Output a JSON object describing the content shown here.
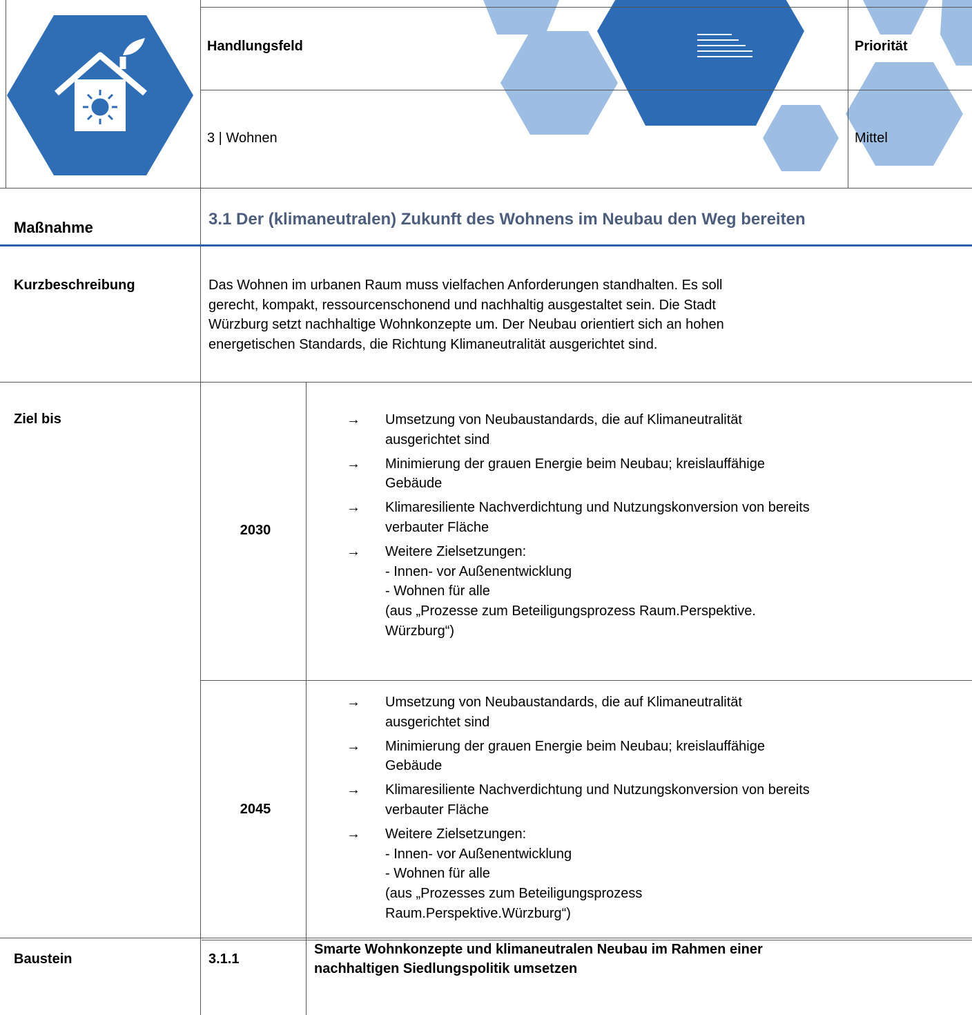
{
  "header": {
    "field_label": "Handlungsfeld",
    "field_value": "3 | Wohnen",
    "priority_label": "Priorität",
    "priority_value": "Mittel"
  },
  "measure": {
    "label": "Maßnahme",
    "title": "3.1 Der (klimaneutralen) Zukunft des Wohnens im Neubau den Weg bereiten"
  },
  "description": {
    "label": "Kurzbeschreibung",
    "lines": [
      "Das Wohnen im urbanen Raum muss vielfachen Anforderungen standhalten. Es soll",
      "gerecht, kompakt, ressourcenschonend und nachhaltig ausgestaltet sein. Die Stadt",
      "Würzburg setzt nachhaltige Wohnkonzepte um. Der Neubau orientiert sich an hohen",
      "energetischen Standards, die Richtung Klimaneutralität ausgerichtet sind."
    ]
  },
  "goals": {
    "label": "Ziel bis",
    "arrow": "→",
    "periods": [
      {
        "year": "2030",
        "items": [
          [
            "Umsetzung von Neubaustandards, die auf Klimaneutralität",
            "ausgerichtet sind"
          ],
          [
            "Minimierung der grauen Energie beim Neubau; kreislauffähige",
            "Gebäude"
          ],
          [
            "Klimaresiliente Nachverdichtung und Nutzungskonversion von bereits",
            "verbauter Fläche"
          ],
          [
            "Weitere Zielsetzungen:",
            "- Innen- vor Außenentwicklung",
            "- Wohnen für alle",
            "(aus „Prozesse zum Beteiligungsprozess Raum.Perspektive.",
            "Würzburg“)"
          ]
        ]
      },
      {
        "year": "2045",
        "items": [
          [
            "Umsetzung von Neubaustandards, die auf Klimaneutralität",
            "ausgerichtet sind"
          ],
          [
            "Minimierung der grauen Energie beim Neubau; kreislauffähige",
            "Gebäude"
          ],
          [
            "Klimaresiliente Nachverdichtung und Nutzungskonversion von bereits",
            "verbauter Fläche"
          ],
          [
            "Weitere Zielsetzungen:",
            "- Innen- vor Außenentwicklung",
            "- Wohnen für alle",
            "(aus „Prozesses zum Beteiligungsprozess",
            "Raum.Perspektive.Würzburg“)"
          ]
        ]
      }
    ]
  },
  "component": {
    "label": "Baustein",
    "number": "3.1.1",
    "title_lines": [
      "Smarte Wohnkonzepte und klimaneutralen Neubau im Rahmen einer",
      "nachhaltigen Siedlungspolitik umsetzen"
    ]
  }
}
